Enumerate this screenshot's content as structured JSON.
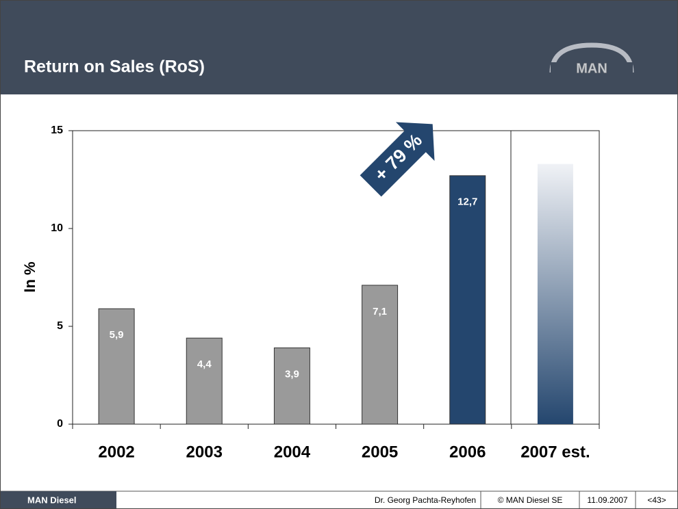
{
  "header": {
    "title": "Return on Sales (RoS)",
    "logo": "MAN"
  },
  "chart_data": {
    "type": "bar",
    "categories": [
      "2002",
      "2003",
      "2004",
      "2005",
      "2006",
      "2007 est."
    ],
    "values": [
      5.9,
      4.4,
      3.9,
      7.1,
      12.7,
      13.3
    ],
    "value_labels": [
      "5,9",
      "4,4",
      "3,9",
      "7,1",
      "12,7",
      null
    ],
    "colors": [
      "#9a9a9a",
      "#9a9a9a",
      "#9a9a9a",
      "#9a9a9a",
      "#24466e",
      "#24466e"
    ],
    "faded": [
      false,
      false,
      false,
      false,
      false,
      true
    ],
    "fade_color": "#f0f2f6",
    "ylabel": "In %",
    "ylim": [
      0,
      15
    ],
    "yticks": [
      0,
      5,
      10,
      15
    ],
    "annotation": "+ 79 %"
  },
  "footer": {
    "brand": "MAN Diesel",
    "author": "Dr. Georg Pachta-Reyhofen",
    "copyright": "© MAN Diesel SE",
    "date": "11.09.2007",
    "page": "<43>"
  }
}
